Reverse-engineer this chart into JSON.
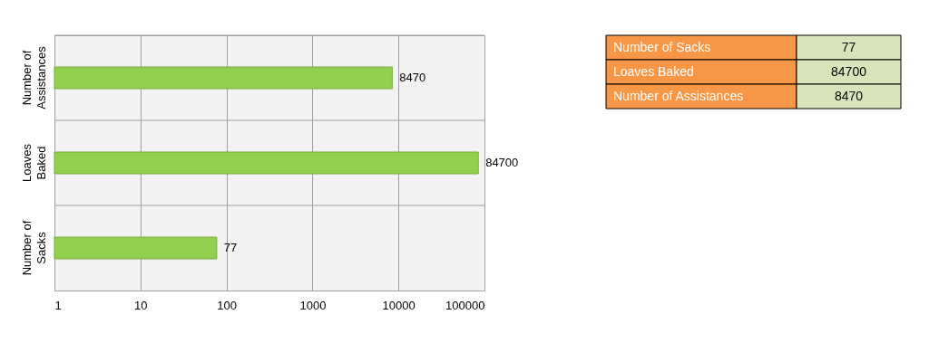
{
  "chart_data": [
    {
      "type": "bar",
      "orientation": "horizontal",
      "log": "x",
      "categories": [
        "Number of Assistances",
        "Loaves Baked",
        "Number of Sacks"
      ],
      "values": [
        8470,
        84700,
        77
      ],
      "color": "#92d050",
      "xlim": [
        1,
        100000
      ],
      "xticks": [
        1,
        10,
        100,
        1000,
        10000,
        100000
      ],
      "grid": true,
      "legend": false,
      "data_labels": true
    },
    {
      "type": "other",
      "categories": [
        "Number of Sacks",
        "Loaves Baked",
        "Number of Assistances"
      ],
      "values": [
        77,
        84700,
        8470
      ],
      "data_labels": true
    }
  ]
}
